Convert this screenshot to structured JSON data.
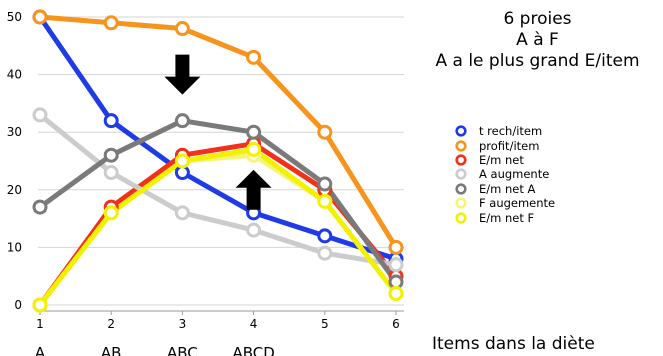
{
  "chart_data": {
    "type": "line",
    "title_lines": [
      "6 proies",
      "A à F",
      "A a le plus grand E/item"
    ],
    "xlabel": "Items dans la diète",
    "x": [
      1,
      2,
      3,
      4,
      5,
      6
    ],
    "x_tick_labels": [
      "1",
      "2",
      "3",
      "4",
      "5",
      "6"
    ],
    "x_category_labels": [
      "A",
      "AB",
      "ABC",
      "ABCD"
    ],
    "yticks": [
      0,
      10,
      20,
      30,
      40,
      50
    ],
    "ylim": [
      0,
      50
    ],
    "grid": "horizontal",
    "legend_placement": "right",
    "series": [
      {
        "name": "t rech/item",
        "color": "#1f3be8",
        "values": [
          50,
          32,
          23,
          16,
          12,
          8
        ]
      },
      {
        "name": "profit/item",
        "color": "#f7941d",
        "values": [
          50,
          49,
          48,
          43,
          30,
          10
        ]
      },
      {
        "name": "E/m net",
        "color": "#f2301b",
        "values": [
          0,
          17,
          26,
          28,
          20,
          5
        ]
      },
      {
        "name": "A augmente",
        "color": "#cccccc",
        "values": [
          33,
          23,
          16,
          13,
          9,
          7
        ]
      },
      {
        "name": "E/m net A",
        "color": "#7a7a7a",
        "values": [
          17,
          26,
          32,
          30,
          21,
          4
        ]
      },
      {
        "name": "F augemente",
        "color": "#f5f57a",
        "values": [
          0,
          16,
          25,
          26,
          18,
          2
        ]
      },
      {
        "name": "E/m net F",
        "color": "#f2f200",
        "values": [
          0,
          16,
          25,
          27,
          18,
          2
        ]
      }
    ],
    "annotations": [
      {
        "type": "arrow-down",
        "x": 3,
        "y": 40
      },
      {
        "type": "arrow-up",
        "x": 4,
        "y": 20
      }
    ]
  }
}
